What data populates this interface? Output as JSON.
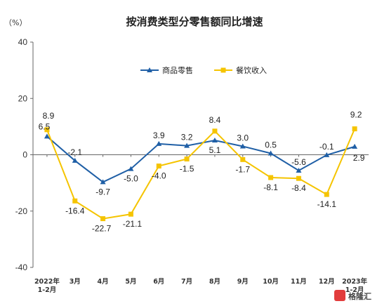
{
  "chart_data": {
    "type": "line",
    "title": "按消费类型分零售额同比增速",
    "unit": "（%）",
    "ylim": [
      -40,
      40
    ],
    "yticks": [
      "40",
      "20",
      "0",
      "-20",
      "-40"
    ],
    "categories": [
      [
        "2022年",
        "1-2月"
      ],
      [
        "3月"
      ],
      [
        "4月"
      ],
      [
        "5月"
      ],
      [
        "6月"
      ],
      [
        "7月"
      ],
      [
        "8月"
      ],
      [
        "9月"
      ],
      [
        "10月"
      ],
      [
        "11月"
      ],
      [
        "12月"
      ],
      [
        "2023年",
        "1-2月"
      ]
    ],
    "legend_position": "top-center",
    "series": [
      {
        "name": "商品零售",
        "color": "#1f5fa6",
        "marker": "triangle",
        "values": [
          6.5,
          -2.1,
          -9.7,
          -5.0,
          3.9,
          3.2,
          5.1,
          3.0,
          0.5,
          -5.6,
          -0.1,
          2.9
        ],
        "labels": [
          "6.5",
          "-2.1",
          "-9.7",
          "-5.0",
          "3.9",
          "3.2",
          "5.1",
          "3.0",
          "0.5",
          "-5.6",
          "-0.1",
          "2.9"
        ]
      },
      {
        "name": "餐饮收入",
        "color": "#f5c400",
        "marker": "square",
        "values": [
          8.9,
          -16.4,
          -22.7,
          -21.1,
          -4.0,
          -1.5,
          8.4,
          -1.7,
          -8.1,
          -8.4,
          -14.1,
          9.2
        ],
        "labels": [
          "8.9",
          "-16.4",
          "-22.7",
          "-21.1",
          "-4.0",
          "-1.5",
          "8.4",
          "-1.7",
          "-8.1",
          "-8.4",
          "-14.1",
          "9.2"
        ]
      }
    ]
  },
  "watermark": "格隆汇"
}
